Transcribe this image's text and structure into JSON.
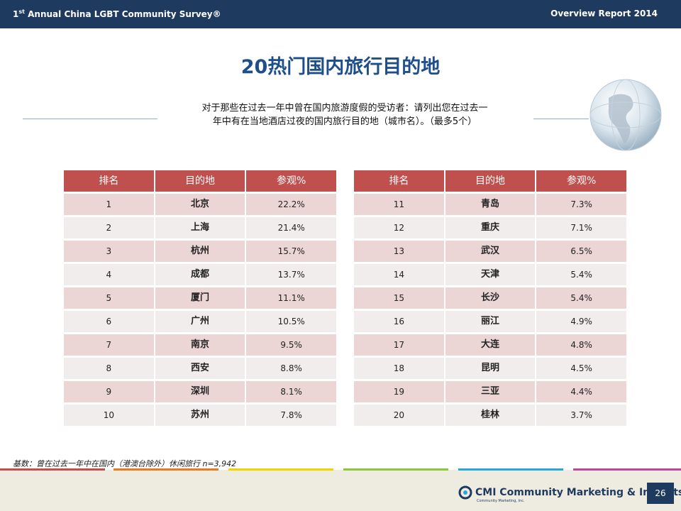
{
  "header": {
    "left_num": "1",
    "left_sup": "st",
    "left_text": "Annual China LGBT Community Survey®",
    "right": "Overview Report 2014"
  },
  "title": "20热门国内旅行目的地",
  "question": [
    "对于那些在过去一年中曾在国内旅游度假的受访者：请列出您在过去一",
    "年中有在当地酒店过夜的国内旅行目的地（城市名）。（最多5个）"
  ],
  "tables": [
    {
      "headers": [
        "排名",
        "目的地",
        "参观%"
      ],
      "rows": [
        [
          1,
          "北京",
          "22.2%"
        ],
        [
          2,
          "上海",
          "21.4%"
        ],
        [
          3,
          "杭州",
          "15.7%"
        ],
        [
          4,
          "成都",
          "13.7%"
        ],
        [
          5,
          "厦门",
          "11.1%"
        ],
        [
          6,
          "广州",
          "10.5%"
        ],
        [
          7,
          "南京",
          "9.5%"
        ],
        [
          8,
          "西安",
          "8.8%"
        ],
        [
          9,
          "深圳",
          "8.1%"
        ],
        [
          10,
          "苏州",
          "7.8%"
        ]
      ]
    },
    {
      "headers": [
        "排名",
        "目的地",
        "参观%"
      ],
      "rows": [
        [
          11,
          "青岛",
          "7.3%"
        ],
        [
          12,
          "重庆",
          "7.1%"
        ],
        [
          13,
          "武汉",
          "6.5%"
        ],
        [
          14,
          "天津",
          "5.4%"
        ],
        [
          15,
          "长沙",
          "5.4%"
        ],
        [
          16,
          "丽江",
          "4.9%"
        ],
        [
          17,
          "大连",
          "4.8%"
        ],
        [
          18,
          "昆明",
          "4.5%"
        ],
        [
          19,
          "三亚",
          "4.4%"
        ],
        [
          20,
          "桂林",
          "3.7%"
        ]
      ]
    }
  ],
  "footnote": "基数：曾在过去一年中在国内（港澳台除外）休闲旅行 n=3,942",
  "logo": {
    "mark": "CMI",
    "name": "Community Marketing & Insights",
    "sub": "Community Marketing, Inc."
  },
  "page_number": 26
}
